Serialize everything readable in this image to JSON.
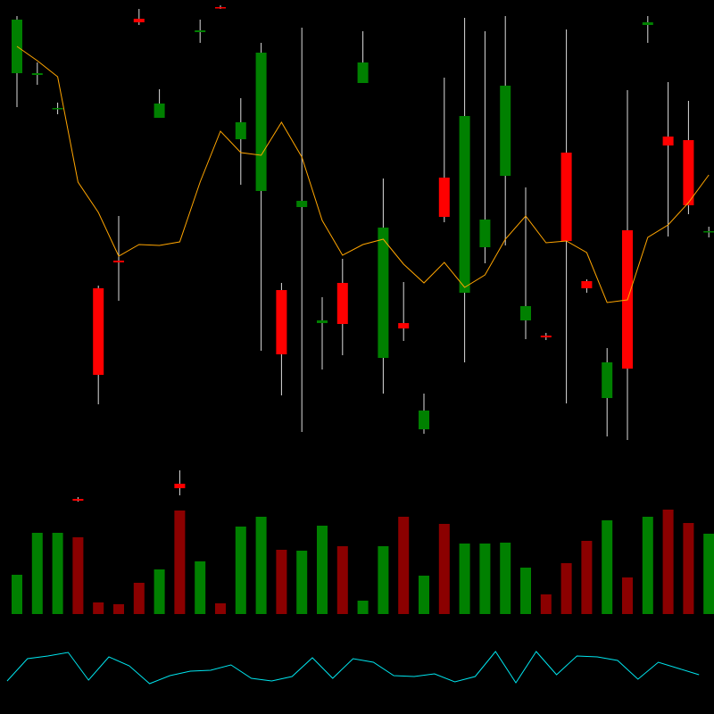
{
  "chart_data": [
    {
      "type": "candlestick",
      "open": [
        718,
        716,
        678,
        241,
        477,
        508,
        779,
        668,
        258,
        764,
        792,
        644,
        586,
        475,
        568,
        438,
        483,
        707,
        399,
        438,
        319,
        601,
        472,
        523,
        603,
        441,
        424,
        629,
        485,
        354,
        542,
        772,
        647,
        643,
        540
      ],
      "high": [
        782,
        730,
        685,
        243,
        480,
        558,
        790,
        700,
        273,
        778,
        794,
        690,
        752,
        483,
        769,
        467,
        510,
        765,
        600,
        484,
        359,
        713,
        780,
        765,
        782,
        590,
        427,
        767,
        487,
        410,
        699,
        782,
        708,
        687,
        546
      ],
      "low": [
        680,
        705,
        672,
        238,
        347,
        463,
        772,
        668,
        245,
        752,
        790,
        593,
        407,
        357,
        316,
        386,
        402,
        707,
        359,
        418,
        314,
        551,
        394,
        505,
        525,
        420,
        419,
        348,
        472,
        311,
        307,
        752,
        535,
        560,
        534
      ],
      "close": [
        778,
        718,
        679,
        239,
        380,
        506,
        775,
        684,
        253,
        766,
        791,
        663,
        741,
        403,
        575,
        441,
        437,
        730,
        545,
        432,
        340,
        557,
        670,
        554,
        704,
        457,
        422,
        530,
        477,
        394,
        387,
        775,
        637,
        570,
        541
      ],
      "up_color": "#008000",
      "down_color": "#ff0000",
      "wick_color": "#dddddd",
      "ylim": [
        0,
        800
      ],
      "overlay": {
        "color": "#ffa500",
        "values": [
          748,
          732,
          714,
          596,
          562,
          513,
          526,
          525,
          529,
          596,
          653,
          629,
          626,
          663,
          624,
          553,
          514,
          526,
          532,
          504,
          483,
          506,
          478,
          492,
          532,
          558,
          528,
          530,
          517,
          461,
          464,
          534,
          548,
          573,
          604
        ]
      }
    },
    {
      "type": "bar",
      "values": [
        44,
        91,
        91,
        86,
        13,
        11,
        35,
        50,
        116,
        59,
        12,
        98,
        109,
        72,
        71,
        99,
        76,
        15,
        76,
        109,
        43,
        101,
        79,
        79,
        80,
        52,
        22,
        57,
        82,
        105,
        41,
        109,
        117,
        102,
        90
      ],
      "colors": [
        "#008000",
        "#008000",
        "#008000",
        "#8b0000",
        "#8b0000",
        "#8b0000",
        "#8b0000",
        "#008000",
        "#8b0000",
        "#008000",
        "#8b0000",
        "#008000",
        "#008000",
        "#8b0000",
        "#008000",
        "#008000",
        "#8b0000",
        "#008000",
        "#008000",
        "#8b0000",
        "#008000",
        "#8b0000",
        "#008000",
        "#008000",
        "#008000",
        "#008000",
        "#8b0000",
        "#8b0000",
        "#8b0000",
        "#008000",
        "#8b0000",
        "#008000",
        "#8b0000",
        "#8b0000",
        "#008000"
      ],
      "ylim": [
        0,
        128
      ]
    },
    {
      "type": "line",
      "color": "#00e5ee",
      "values": [
        37,
        62,
        65,
        69,
        38,
        64,
        54,
        34,
        43,
        48,
        49,
        55,
        40,
        37,
        42,
        63,
        40,
        62,
        58,
        43,
        42,
        45,
        36,
        42,
        70,
        35,
        70,
        44,
        65,
        64,
        60,
        39,
        58,
        51,
        44
      ],
      "ylim": [
        0,
        100
      ]
    }
  ]
}
